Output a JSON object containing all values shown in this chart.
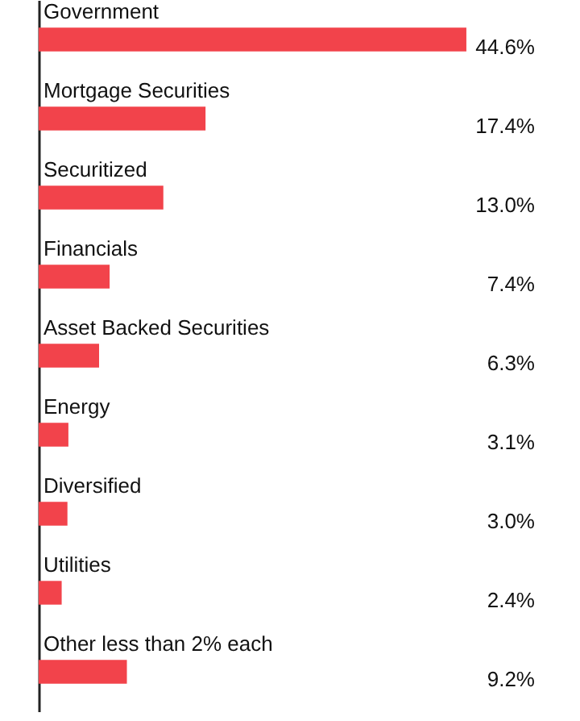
{
  "chart_data": {
    "type": "bar",
    "orientation": "horizontal",
    "categories": [
      "Government",
      "Mortgage Securities",
      "Securitized",
      "Financials",
      "Asset Backed Securities",
      "Energy",
      "Diversified",
      "Utilities",
      "Other less than 2% each"
    ],
    "values": [
      44.6,
      17.4,
      13.0,
      7.4,
      6.3,
      3.1,
      3.0,
      2.4,
      9.2
    ],
    "value_labels": [
      "44.6%",
      "17.4%",
      "13.0%",
      "7.4%",
      "6.3%",
      "3.1%",
      "3.0%",
      "2.4%",
      "9.2%"
    ],
    "color": "#f2434b"
  }
}
